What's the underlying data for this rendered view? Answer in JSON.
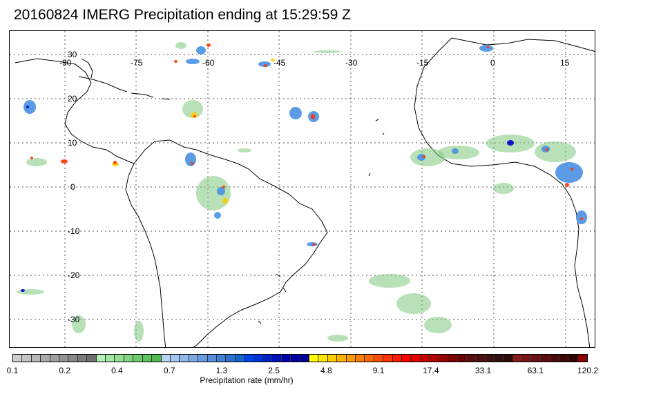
{
  "title": "20160824 IMERG Precipitation ending at 15:29:59 Z",
  "map": {
    "lon_labels": [
      "-90",
      "-75",
      "-60",
      "-45",
      "-30",
      "-15",
      "0",
      "15"
    ],
    "lat_labels": [
      "30",
      "20",
      "10",
      "0",
      "-10",
      "-20",
      "-30"
    ],
    "gridline_style": "dotted",
    "coastline_color": "#000000"
  },
  "colorbar": {
    "tick_labels": [
      "0.1",
      "0.2",
      "0.4",
      "0.7",
      "1.3",
      "2.5",
      "4.8",
      "9.1",
      "17.4",
      "33.1",
      "63.1",
      "120.2"
    ],
    "units_label": "Precipitation rate (mm/hr)",
    "colors": [
      "#cfcfcf",
      "#c3c3c3",
      "#b7b7b7",
      "#ababab",
      "#9f9f9f",
      "#939393",
      "#878787",
      "#7b7b7b",
      "#6f6f6f",
      "#b3f0b3",
      "#a2e8a2",
      "#91df91",
      "#80d680",
      "#6fcd6f",
      "#5fc45f",
      "#4fb94f",
      "#b8d4f5",
      "#a4c6f0",
      "#90b8eb",
      "#7caae6",
      "#689ce1",
      "#548edc",
      "#4080d7",
      "#2c72d2",
      "#1864cd",
      "#0044ee",
      "#0033dd",
      "#0022cc",
      "#0011bb",
      "#0000aa",
      "#0000a0",
      "#000096",
      "#ffff00",
      "#ffe600",
      "#ffcc00",
      "#ffb300",
      "#ff9900",
      "#ff8000",
      "#ff6600",
      "#ff4d00",
      "#ff3300",
      "#ff1a00",
      "#ff0000",
      "#e60000",
      "#cc0000",
      "#b30000",
      "#990000",
      "#800000",
      "#6b0000",
      "#5a0d0d",
      "#4d1010",
      "#401010",
      "#331010",
      "#2a0a0a",
      "#8b1a1a",
      "#7a1515",
      "#6b1111",
      "#5c0d0d",
      "#4d0a0a",
      "#3e0606",
      "#300303",
      "#8b0000"
    ]
  },
  "legend_colors": {
    "light": "#7ec97e",
    "moderate": "#4a90e2",
    "heavy": "#0000cc",
    "intense": "#ffcc00",
    "extreme": "#ff3300"
  }
}
